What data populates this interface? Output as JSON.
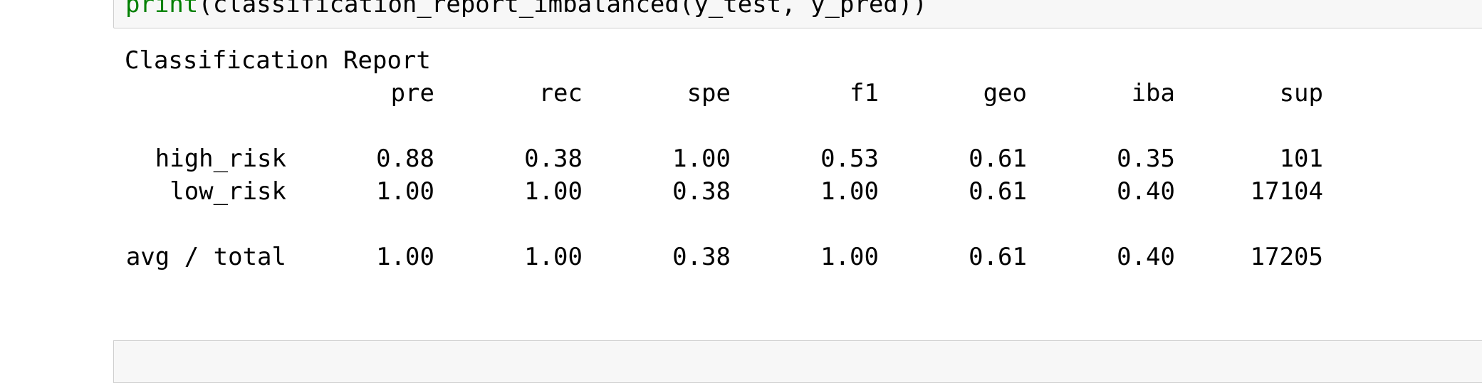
{
  "code_cell": {
    "keyword": "print",
    "text": "(classification_report_imbalanced(y_test, y_pred))"
  },
  "output": {
    "title": "Classification Report",
    "header": [
      "pre",
      "rec",
      "spe",
      "f1",
      "geo",
      "iba",
      "sup"
    ],
    "rows": [
      [
        "high_risk",
        "0.88",
        "0.38",
        "1.00",
        "0.53",
        "0.61",
        "0.35",
        "101"
      ],
      [
        "low_risk",
        "1.00",
        "1.00",
        "0.38",
        "1.00",
        "0.61",
        "0.40",
        "17104"
      ]
    ],
    "total": [
      "avg / total",
      "1.00",
      "1.00",
      "0.38",
      "1.00",
      "0.61",
      "0.40",
      "17205"
    ]
  }
}
